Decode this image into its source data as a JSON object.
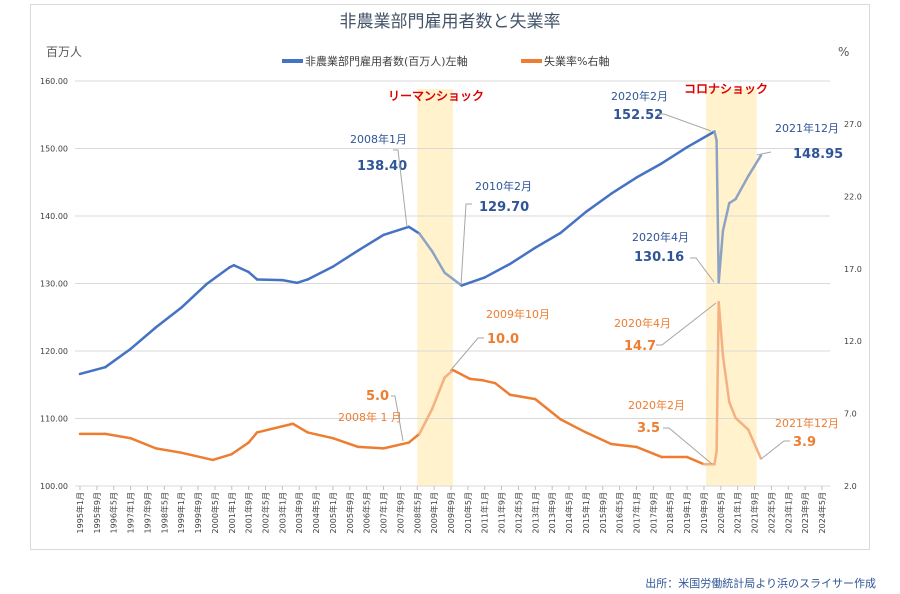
{
  "chart_data": {
    "type": "line",
    "title": "非農業部門雇用者数と失業率",
    "left_axis_unit": "百万人",
    "right_axis_unit": "%",
    "left_axis": {
      "range": [
        100,
        160
      ],
      "ticks": [
        "100.00",
        "110.00",
        "120.00",
        "130.00",
        "140.00",
        "150.00",
        "160.00"
      ]
    },
    "right_axis": {
      "range": [
        2,
        27
      ],
      "ticks": [
        "2.0",
        "7.0",
        "12.0",
        "17.0",
        "22.0",
        "27.0"
      ]
    },
    "x_range": [
      "1995-01",
      "2024-05"
    ],
    "x_tick_labels": [
      "1995年1月",
      "1995年9月",
      "1996年5月",
      "1997年1月",
      "1997年9月",
      "1998年5月",
      "1999年1月",
      "1999年9月",
      "2000年5月",
      "2001年1月",
      "2001年9月",
      "2002年5月",
      "2003年1月",
      "2003年9月",
      "2004年5月",
      "2005年1月",
      "2005年9月",
      "2006年5月",
      "2007年1月",
      "2007年9月",
      "2008年5月",
      "2009年1月",
      "2009年9月",
      "2010年5月",
      "2011年1月",
      "2011年9月",
      "2012年5月",
      "2013年1月",
      "2013年9月",
      "2014年5月",
      "2015年1月",
      "2015年9月",
      "2016年5月",
      "2017年1月",
      "2017年9月",
      "2018年5月",
      "2019年1月",
      "2019年9月",
      "2020年5月",
      "2021年1月",
      "2021年9月",
      "2022年5月",
      "2023年1月",
      "2023年9月",
      "2024年5月"
    ],
    "grid": true,
    "legend_placement": "top",
    "series": [
      {
        "name": "非農業部門雇用者数(百万人)左軸",
        "axis": "left",
        "color": "#4472c4",
        "points": [
          [
            "1995-01",
            116.6
          ],
          [
            "1996-01",
            117.6
          ],
          [
            "1997-01",
            120.3
          ],
          [
            "1998-01",
            123.5
          ],
          [
            "1999-01",
            126.4
          ],
          [
            "2000-01",
            129.9
          ],
          [
            "2000-12",
            132.4
          ],
          [
            "2001-02",
            132.7
          ],
          [
            "2001-09",
            131.7
          ],
          [
            "2002-01",
            130.6
          ],
          [
            "2003-01",
            130.5
          ],
          [
            "2003-08",
            130.1
          ],
          [
            "2004-01",
            130.6
          ],
          [
            "2005-01",
            132.5
          ],
          [
            "2006-01",
            134.9
          ],
          [
            "2007-01",
            137.2
          ],
          [
            "2008-01",
            138.4
          ],
          [
            "2008-06",
            137.4
          ],
          [
            "2008-12",
            134.8
          ],
          [
            "2009-06",
            131.6
          ],
          [
            "2010-02",
            129.7
          ],
          [
            "2011-01",
            130.9
          ],
          [
            "2012-01",
            132.9
          ],
          [
            "2013-01",
            135.3
          ],
          [
            "2014-01",
            137.5
          ],
          [
            "2015-01",
            140.6
          ],
          [
            "2016-01",
            143.3
          ],
          [
            "2017-01",
            145.7
          ],
          [
            "2018-01",
            147.8
          ],
          [
            "2019-01",
            150.2
          ],
          [
            "2020-02",
            152.52
          ],
          [
            "2020-03",
            151.2
          ],
          [
            "2020-04",
            130.16
          ],
          [
            "2020-06",
            137.8
          ],
          [
            "2020-09",
            141.9
          ],
          [
            "2020-12",
            142.5
          ],
          [
            "2021-06",
            145.9
          ],
          [
            "2021-12",
            148.95
          ]
        ]
      },
      {
        "name": "失業率%右軸",
        "axis": "right",
        "color": "#ed7d31",
        "points": [
          [
            "1995-01",
            5.6
          ],
          [
            "1996-01",
            5.6
          ],
          [
            "1997-01",
            5.3
          ],
          [
            "1998-01",
            4.6
          ],
          [
            "1999-01",
            4.3
          ],
          [
            "2000-04",
            3.8
          ],
          [
            "2001-01",
            4.2
          ],
          [
            "2001-09",
            5.0
          ],
          [
            "2002-01",
            5.7
          ],
          [
            "2003-06",
            6.3
          ],
          [
            "2004-01",
            5.7
          ],
          [
            "2005-01",
            5.3
          ],
          [
            "2006-01",
            4.7
          ],
          [
            "2007-01",
            4.6
          ],
          [
            "2008-01",
            5.0
          ],
          [
            "2008-06",
            5.6
          ],
          [
            "2008-12",
            7.3
          ],
          [
            "2009-06",
            9.5
          ],
          [
            "2009-10",
            10.0
          ],
          [
            "2010-06",
            9.4
          ],
          [
            "2010-12",
            9.3
          ],
          [
            "2011-06",
            9.1
          ],
          [
            "2012-01",
            8.3
          ],
          [
            "2013-01",
            8.0
          ],
          [
            "2014-01",
            6.6
          ],
          [
            "2015-01",
            5.7
          ],
          [
            "2016-01",
            4.9
          ],
          [
            "2017-01",
            4.7
          ],
          [
            "2018-01",
            4.0
          ],
          [
            "2019-01",
            4.0
          ],
          [
            "2019-09",
            3.5
          ],
          [
            "2020-02",
            3.5
          ],
          [
            "2020-03",
            4.4
          ],
          [
            "2020-04",
            14.7
          ],
          [
            "2020-06",
            11.0
          ],
          [
            "2020-09",
            7.8
          ],
          [
            "2020-12",
            6.7
          ],
          [
            "2021-06",
            5.9
          ],
          [
            "2021-12",
            3.9
          ]
        ]
      }
    ],
    "shaded_periods": [
      {
        "label": "リーマンショック",
        "from": "2008-05",
        "to": "2009-09",
        "color": "#fff2cc"
      },
      {
        "label": "コロナショック",
        "from": "2019-10",
        "to": "2021-09",
        "color": "#fff2cc"
      }
    ],
    "annotations": {
      "emp_2008": {
        "date": "2008年1月",
        "value": "138.40"
      },
      "emp_2010": {
        "date": "2010年2月",
        "value": "129.70"
      },
      "emp_2020feb": {
        "date": "2020年2月",
        "value": "152.52"
      },
      "emp_2020apr": {
        "date": "2020年4月",
        "value": "130.16"
      },
      "emp_2021dec": {
        "date": "2021年12月",
        "value": "148.95"
      },
      "ur_2008": {
        "date": "2008年 1 月",
        "value": "5.0"
      },
      "ur_2009": {
        "date": "2009年10月",
        "value": "10.0"
      },
      "ur_2020feb": {
        "date": "2020年2月",
        "value": "3.5"
      },
      "ur_2020apr": {
        "date": "2020年4月",
        "value": "14.7"
      },
      "ur_2021dec": {
        "date": "2021年12月",
        "value": "3.9"
      }
    },
    "source": "出所：米国労働統計局より浜のスライサー作成"
  }
}
